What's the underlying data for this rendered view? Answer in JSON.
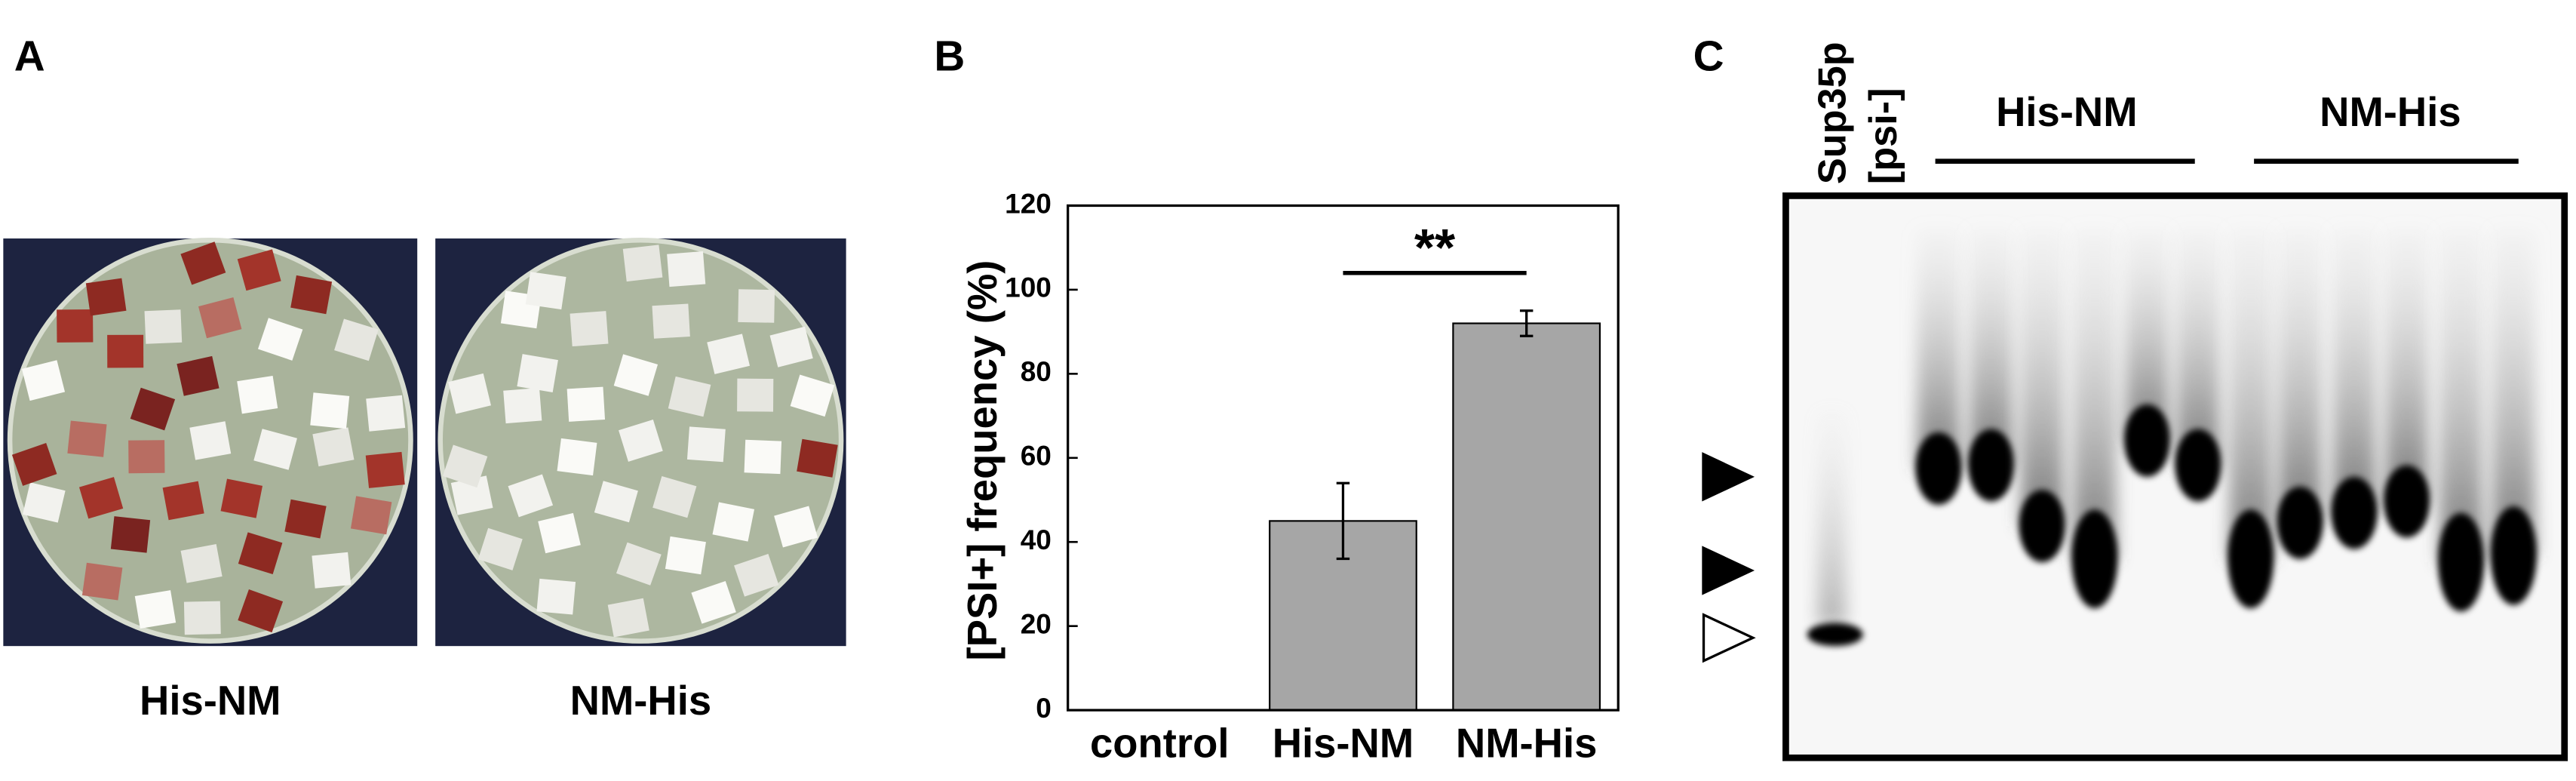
{
  "figure": {
    "panel_a": {
      "letter": "A",
      "captions": [
        "His-NM",
        "NM-His"
      ]
    },
    "panel_c": {
      "letter": "C",
      "lane_labels": [
        "Sup35p",
        "[psi-]"
      ],
      "groups": [
        "His-NM",
        "NM-His"
      ]
    }
  },
  "chart_data": {
    "type": "bar",
    "letter": "B",
    "y_label": "[PSI+] frequency (%)",
    "categories": [
      "control",
      "His-NM",
      "NM-His"
    ],
    "values": [
      0,
      45,
      92
    ],
    "errors": [
      null,
      9,
      3
    ],
    "color": "#a6a6a6",
    "ylim": [
      0,
      120
    ],
    "yticks": [
      0,
      20,
      40,
      60,
      80,
      100,
      120
    ],
    "annotation": "**"
  }
}
